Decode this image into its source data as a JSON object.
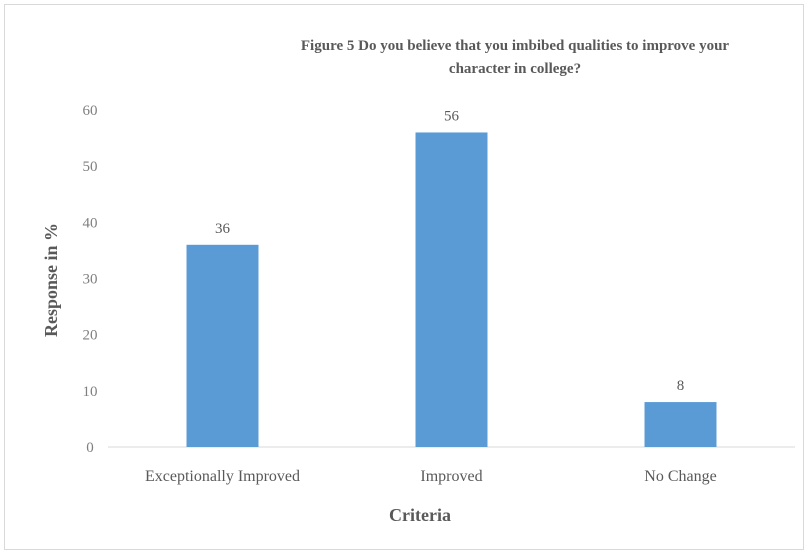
{
  "chart_data": {
    "type": "bar",
    "title_lines": [
      "Figure 5 Do you believe that you imbibed qualities to improve your",
      "character in college?"
    ],
    "categories": [
      "Exceptionally Improved",
      "Improved",
      "No Change"
    ],
    "values": [
      36,
      56,
      8
    ],
    "xlabel": "Criteria",
    "ylabel": "Response in %",
    "ylim": [
      0,
      60
    ],
    "yticks": [
      0,
      10,
      20,
      30,
      40,
      50,
      60
    ],
    "grid": false,
    "legend": "none",
    "bar_color": "#5b9bd5",
    "data_labels": true
  }
}
